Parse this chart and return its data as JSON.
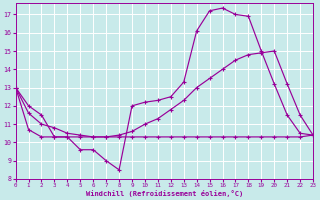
{
  "xlabel": "Windchill (Refroidissement éolien,°C)",
  "bg_color": "#c8eaea",
  "grid_color": "#ffffff",
  "line_color": "#990099",
  "line1": {
    "x": [
      0,
      1,
      2,
      3,
      4,
      5,
      6,
      7,
      8,
      9,
      10,
      11,
      12,
      13,
      14,
      15,
      16,
      17,
      18,
      19,
      20,
      21,
      22,
      23
    ],
    "y": [
      13,
      12,
      11.5,
      10.3,
      10.3,
      9.6,
      9.6,
      9.0,
      8.5,
      12.0,
      12.2,
      12.3,
      12.5,
      13.3,
      16.1,
      17.2,
      17.35,
      17.0,
      16.9,
      15.0,
      13.2,
      11.5,
      10.5,
      10.4
    ]
  },
  "line2": {
    "x": [
      0,
      1,
      2,
      3,
      4,
      5,
      6,
      7,
      8,
      9,
      10,
      11,
      12,
      13,
      14,
      15,
      16,
      17,
      18,
      19,
      20,
      21,
      22,
      23
    ],
    "y": [
      13,
      11.6,
      11.0,
      10.8,
      10.5,
      10.4,
      10.3,
      10.3,
      10.4,
      10.6,
      11.0,
      11.3,
      11.8,
      12.3,
      13.0,
      13.5,
      14.0,
      14.5,
      14.8,
      14.9,
      15.0,
      13.2,
      11.5,
      10.4
    ]
  },
  "line3": {
    "x": [
      0,
      1,
      2,
      3,
      4,
      5,
      6,
      7,
      8,
      9,
      10,
      11,
      12,
      13,
      14,
      15,
      16,
      17,
      18,
      19,
      20,
      21,
      22,
      23
    ],
    "y": [
      13,
      10.7,
      10.3,
      10.3,
      10.3,
      10.3,
      10.3,
      10.3,
      10.3,
      10.3,
      10.3,
      10.3,
      10.3,
      10.3,
      10.3,
      10.3,
      10.3,
      10.3,
      10.3,
      10.3,
      10.3,
      10.3,
      10.3,
      10.4
    ]
  },
  "xlim": [
    0,
    23
  ],
  "ylim": [
    8,
    17.6
  ],
  "yticks": [
    8,
    9,
    10,
    11,
    12,
    13,
    14,
    15,
    16,
    17
  ],
  "xticks": [
    0,
    1,
    2,
    3,
    4,
    5,
    6,
    7,
    8,
    9,
    10,
    11,
    12,
    13,
    14,
    15,
    16,
    17,
    18,
    19,
    20,
    21,
    22,
    23
  ]
}
